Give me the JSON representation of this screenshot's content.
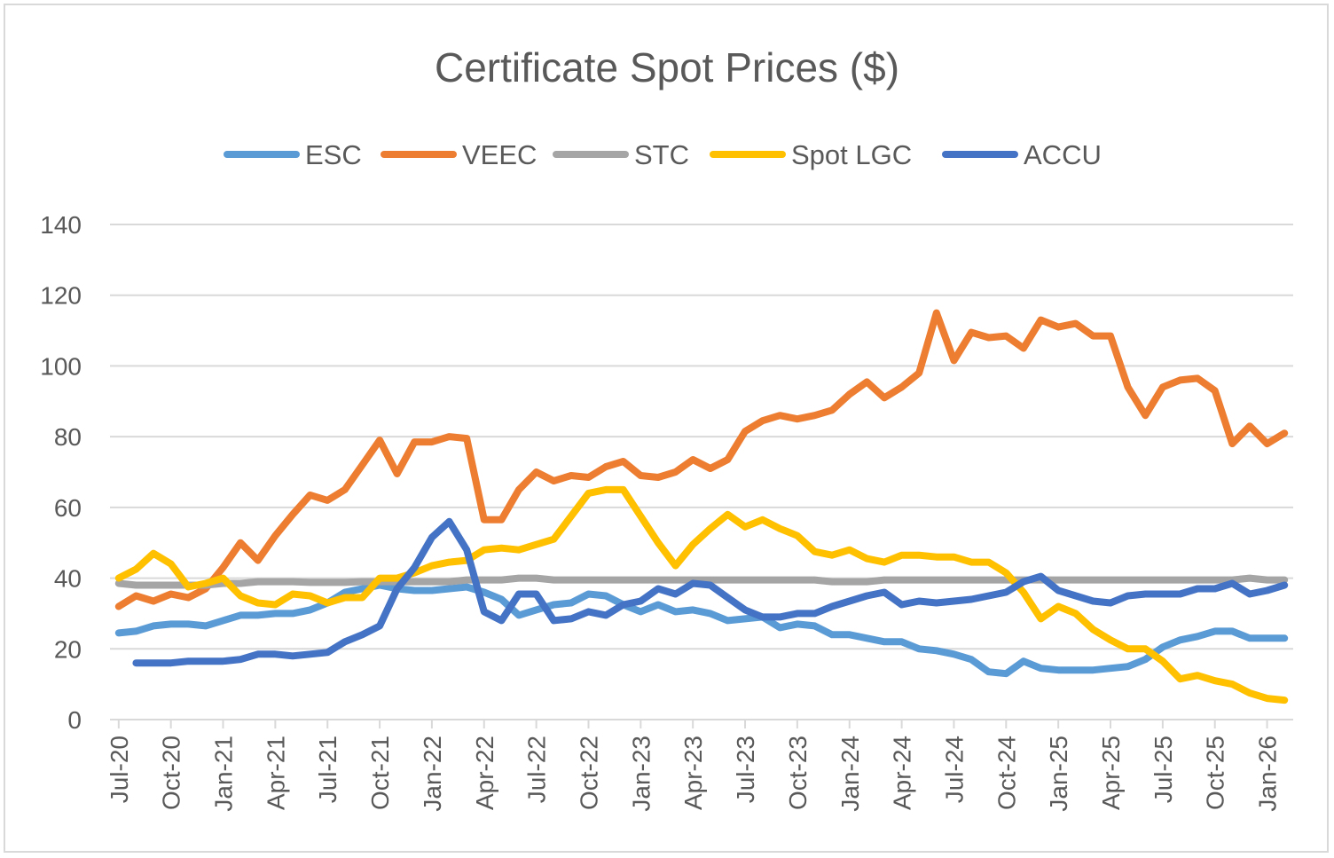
{
  "chart_data": {
    "type": "line",
    "title": "Certificate Spot Prices ($)",
    "xlabel": "",
    "ylabel": "",
    "ylim": [
      0,
      140
    ],
    "yticks": [
      0,
      20,
      40,
      60,
      80,
      100,
      120,
      140
    ],
    "grid": true,
    "legend_position": "top",
    "x_tick_labels": [
      "Jul-20",
      "Oct-20",
      "Jan-21",
      "Apr-21",
      "Jul-21",
      "Oct-21",
      "Jan-22",
      "Apr-22",
      "Jul-22",
      "Oct-22",
      "Jan-23",
      "Apr-23",
      "Jul-23",
      "Oct-23",
      "Jan-24",
      "Apr-24",
      "Jul-24",
      "Oct-24",
      "Jan-25",
      "Apr-25",
      "Jul-25",
      "Oct-25",
      "Jan-26"
    ],
    "x_start": "Jul-20",
    "num_points": 68,
    "series": [
      {
        "name": "ESC",
        "color": "#5b9bd5",
        "values": [
          24.5,
          25,
          26.5,
          27,
          27,
          26.5,
          28,
          29.5,
          29.5,
          30,
          30,
          31,
          33,
          36,
          37,
          38,
          37,
          36.5,
          36.5,
          37,
          37.5,
          36,
          34,
          29.5,
          31,
          32.5,
          33,
          35.5,
          35,
          32.5,
          30.5,
          32.5,
          30.5,
          31,
          30,
          28,
          28.5,
          29,
          26,
          27,
          26.5,
          24,
          24,
          23,
          22,
          22,
          20,
          19.5,
          18.5,
          17,
          13.5,
          13,
          16.5,
          14.5,
          14,
          14,
          14,
          14.5,
          15,
          17,
          20.5,
          22.5,
          23.5,
          25,
          25,
          23,
          23,
          23
        ]
      },
      {
        "name": "VEEC",
        "color": "#ed7d31",
        "values": [
          32,
          35,
          33.5,
          35.5,
          34.5,
          37,
          43,
          50,
          45,
          52,
          58,
          63.5,
          62,
          65,
          72,
          79,
          69.5,
          78.5,
          78.5,
          80,
          79.5,
          56.5,
          56.5,
          65,
          70,
          67.5,
          69,
          68.5,
          71.5,
          73,
          69,
          68.5,
          70,
          73.5,
          71,
          73.5,
          81.5,
          84.5,
          86,
          85,
          86,
          87.5,
          92,
          95.5,
          91,
          94,
          98,
          115,
          101.5,
          109.5,
          108,
          108.5,
          105,
          113,
          111,
          112,
          108.5,
          108.5,
          94,
          86,
          94,
          96,
          96.5,
          93,
          78,
          83,
          78,
          81
        ]
      },
      {
        "name": "STC",
        "color": "#a5a5a5",
        "values": [
          38.5,
          38,
          38,
          38,
          38,
          38,
          38.5,
          38.5,
          39,
          39,
          39,
          38.8,
          38.8,
          38.8,
          39,
          39,
          39,
          39,
          39,
          39,
          39.5,
          39.5,
          39.5,
          40,
          40,
          39.5,
          39.5,
          39.5,
          39.5,
          39.5,
          39.5,
          39.5,
          39.5,
          39.5,
          39.5,
          39.5,
          39.5,
          39.5,
          39.5,
          39.5,
          39.5,
          39,
          39,
          39,
          39.5,
          39.5,
          39.5,
          39.5,
          39.5,
          39.5,
          39.5,
          39.5,
          39.5,
          39.5,
          39.5,
          39.5,
          39.5,
          39.5,
          39.5,
          39.5,
          39.5,
          39.5,
          39.5,
          39.5,
          39.5,
          40,
          39.5,
          39.5
        ]
      },
      {
        "name": "Spot LGC",
        "color": "#ffc000",
        "values": [
          40,
          42.5,
          47,
          44,
          37.5,
          38.5,
          40,
          35,
          33,
          32.5,
          35.5,
          35,
          33,
          34.5,
          34.5,
          40,
          40,
          41.5,
          43.5,
          44.5,
          45,
          48,
          48.5,
          48,
          49.5,
          51,
          57.5,
          64,
          65,
          65,
          57.5,
          50,
          43.5,
          49.5,
          54,
          58,
          54.5,
          56.5,
          54,
          52,
          47.5,
          46.5,
          48,
          45.5,
          44.5,
          46.5,
          46.5,
          46,
          46,
          44.5,
          44.5,
          41.5,
          36,
          28.5,
          32,
          30,
          25.5,
          22.5,
          20,
          20,
          16.5,
          11.5,
          12.5,
          11,
          10,
          7.5,
          6,
          5.5
        ]
      },
      {
        "name": "ACCU",
        "color": "#4472c4",
        "values": [
          null,
          16,
          16,
          16,
          16.5,
          16.5,
          16.5,
          17,
          18.5,
          18.5,
          18,
          18.5,
          19,
          22,
          24,
          26.5,
          37,
          43,
          51.5,
          56,
          48,
          30.5,
          28,
          35.5,
          35.5,
          28,
          28.5,
          30.5,
          29.5,
          32.5,
          33.5,
          37,
          35.5,
          38.5,
          38,
          34.5,
          31,
          29,
          29,
          30,
          30,
          32,
          33.5,
          35,
          36,
          32.5,
          33.5,
          33,
          33.5,
          34,
          35,
          36,
          39,
          40.5,
          36.5,
          35,
          33.5,
          33,
          35,
          35.5,
          35.5,
          35.5,
          37,
          37,
          38.5,
          35.5,
          36.5,
          38
        ]
      }
    ]
  }
}
